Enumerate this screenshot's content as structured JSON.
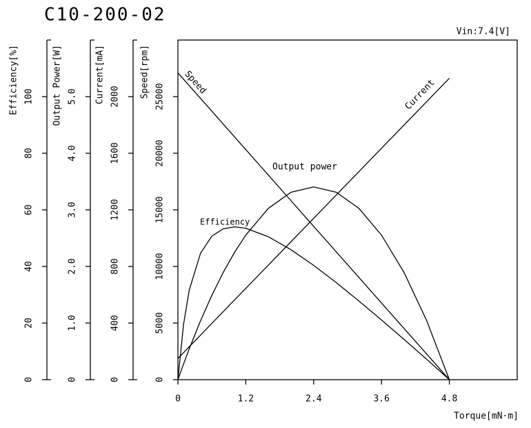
{
  "chart_data": {
    "type": "line",
    "title": "C10-200-02",
    "subtitle": "Vin:7.4[V]",
    "x_label": "Torque[mN·m]",
    "x": [
      0,
      0.1,
      0.2,
      0.4,
      0.6,
      0.8,
      1.0,
      1.2,
      1.6,
      2.0,
      2.4,
      2.8,
      3.2,
      3.6,
      4.0,
      4.4,
      4.8
    ],
    "xlim": [
      0,
      6
    ],
    "xticks": [
      0,
      1.2,
      2.4,
      3.6,
      4.8
    ],
    "series": [
      {
        "name": "Efficiency",
        "color": "#000000",
        "axis_label": "Efficiency[%]",
        "ylim": [
          0,
          120
        ],
        "yticks": [
          0,
          20,
          40,
          60,
          80,
          100
        ],
        "values": [
          0,
          19.6,
          31.6,
          44.7,
          50.7,
          53.3,
          54.0,
          53.5,
          50.5,
          45.9,
          40.4,
          34.3,
          27.8,
          21.1,
          14.2,
          7.2,
          0
        ]
      },
      {
        "name": "Output power",
        "color": "#000000",
        "axis_label": "Output Power[W]",
        "ylim": [
          0,
          6
        ],
        "yticks": [
          0,
          {
            "value": 1,
            "label": "1.0"
          },
          {
            "value": 2,
            "label": "2.0"
          },
          {
            "value": 3,
            "label": "3.0"
          },
          {
            "value": 4,
            "label": "4.0"
          },
          {
            "value": 5,
            "label": "5.0"
          }
        ],
        "values": [
          0,
          0.278,
          0.544,
          1.041,
          1.49,
          1.892,
          2.247,
          2.554,
          3.027,
          3.311,
          3.405,
          3.311,
          3.027,
          2.554,
          1.892,
          1.041,
          0
        ]
      },
      {
        "name": "Current",
        "color": "#000000",
        "axis_label": "Current[mA]",
        "ylim": [
          0,
          2400
        ],
        "yticks": [
          0,
          400,
          800,
          1200,
          1600,
          2000
        ],
        "values": [
          150,
          191,
          233,
          315,
          398,
          480,
          563,
          645,
          810,
          975,
          1140,
          1305,
          1470,
          1635,
          1800,
          1965,
          2130
        ]
      },
      {
        "name": "Speed",
        "color": "#000000",
        "axis_label": "Speed[rpm]",
        "ylim": [
          0,
          30000
        ],
        "yticks": [
          0,
          5000,
          10000,
          15000,
          20000,
          25000
        ],
        "values": [
          27100,
          26535,
          25971,
          24842,
          23713,
          22583,
          21454,
          20325,
          18067,
          15808,
          13550,
          11292,
          9033,
          6775,
          4517,
          2258,
          0
        ]
      }
    ]
  }
}
